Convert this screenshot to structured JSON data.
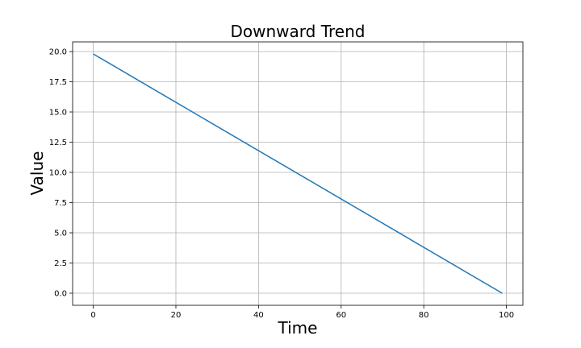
{
  "chart_data": {
    "type": "line",
    "title": "Downward Trend",
    "xlabel": "Time",
    "ylabel": "Value",
    "xlim": [
      -5,
      104
    ],
    "ylim": [
      -1,
      20.8
    ],
    "xticks": [
      0,
      20,
      40,
      60,
      80,
      100
    ],
    "yticks": [
      0.0,
      2.5,
      5.0,
      7.5,
      10.0,
      12.5,
      15.0,
      17.5,
      20.0
    ],
    "xtick_labels": [
      "0",
      "20",
      "40",
      "60",
      "80",
      "100"
    ],
    "ytick_labels": [
      "0.0",
      "2.5",
      "5.0",
      "7.5",
      "10.0",
      "12.5",
      "15.0",
      "17.5",
      "20.0"
    ],
    "grid": true,
    "legend": "none",
    "series": [
      {
        "color": "#1f77b4",
        "x": [
          0,
          99
        ],
        "y": [
          19.8,
          0.0
        ]
      }
    ]
  }
}
